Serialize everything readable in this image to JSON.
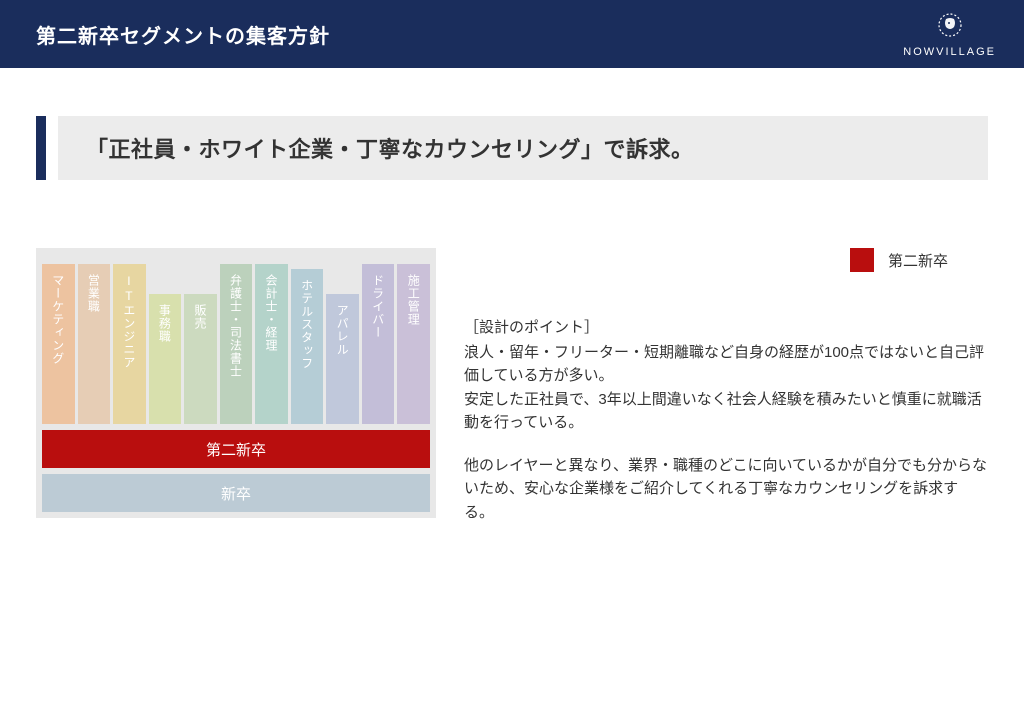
{
  "header": {
    "title": "第二新卒セグメントの集客方針",
    "brand": "NOWVILLAGE"
  },
  "subheader": {
    "text": "「正社員・ホワイト企業・丁寧なカウンセリング」で訴求。",
    "accent_color": "#1a2d5c",
    "band_bg": "#ececec",
    "text_color": "#333333",
    "fontsize": 22
  },
  "legend": {
    "swatch_color": "#b90e0e",
    "label": "第二新卒"
  },
  "chart": {
    "frame_bg": "#cccccc",
    "overlay_opacity": 0.55,
    "bars": [
      {
        "label": "マーケティング",
        "color": "#d77a2e",
        "height": 160
      },
      {
        "label": "営業職",
        "color": "#c7905b",
        "height": 160
      },
      {
        "label": "ITエンジニア",
        "color": "#c9a42f",
        "height": 160
      },
      {
        "label": "事務職",
        "color": "#a8bb4a",
        "height": 130
      },
      {
        "label": "販売",
        "color": "#8fae72",
        "height": 130
      },
      {
        "label": "弁護士・司法書士",
        "color": "#6b9a6b",
        "height": 160
      },
      {
        "label": "会計士・経理",
        "color": "#5a9d8a",
        "height": 160
      },
      {
        "label": "ホテルスタッフ",
        "color": "#5c90a5",
        "height": 155
      },
      {
        "label": "アパレル",
        "color": "#7386b0",
        "height": 130
      },
      {
        "label": "ドライバー",
        "color": "#7a6fa8",
        "height": 160
      },
      {
        "label": "施工管理",
        "color": "#8a74a8",
        "height": 160
      }
    ],
    "segments": [
      {
        "label": "第二新卒",
        "color": "#b90e0e",
        "highlighted": true
      },
      {
        "label": "新卒",
        "color": "#6a8da3",
        "highlighted": false
      }
    ]
  },
  "description": {
    "heading": "［設計のポイント］",
    "para1": "浪人・留年・フリーター・短期離職など自身の経歴が100点ではないと自己評価している方が多い。\n安定した正社員で、3年以上間違いなく社会人経験を積みたいと慎重に就職活動を行っている。",
    "para2": "他のレイヤーと異なり、業界・職種のどこに向いているかが自分でも分からないため、安心な企業様をご紹介してくれる丁寧なカウンセリングを訴求する。"
  },
  "colors": {
    "header_bg": "#1a2d5c",
    "body_bg": "#ffffff",
    "text": "#333333"
  }
}
